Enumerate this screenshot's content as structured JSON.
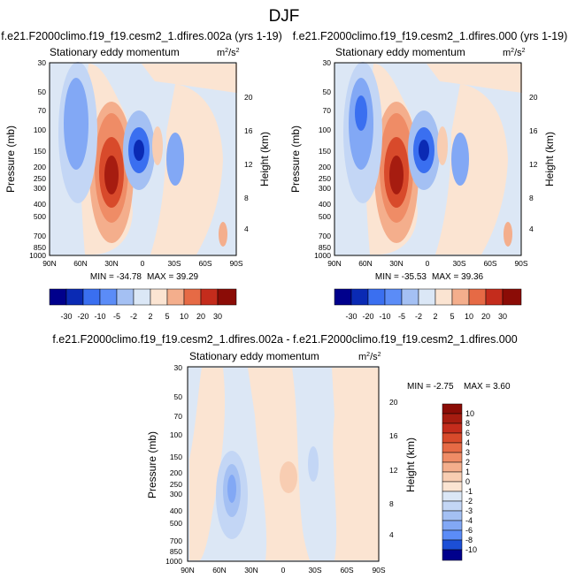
{
  "page_title": "DJF",
  "colors": {
    "neg": [
      "#00008c",
      "#0a2ab4",
      "#1c4fd6",
      "#3a6ff0",
      "#5b8cf7",
      "#82a8f5",
      "#a4c0f3",
      "#c3d6f5",
      "#dbe7f6"
    ],
    "pos": [
      "#fbe4d2",
      "#f8cdb2",
      "#f4ae8c",
      "#ef8c66",
      "#e66a45",
      "#d84a2b",
      "#c42c1c",
      "#a61c10",
      "#8b0c06"
    ],
    "bg_neutral": "#dce7f5"
  },
  "chart_data": [
    {
      "id": "top-left",
      "type": "contour",
      "header": "f.e21.F2000climo.f19_f19.cesm2_1.dfires.002a (yrs 1-19)",
      "title": "Stationary eddy momentum",
      "units_base": "m",
      "units_sup1": "2",
      "units_mid": "/s",
      "units_sup2": "2",
      "xlabel": "",
      "ylabel": "Pressure (mb)",
      "ylabel_right": "Height (km)",
      "x_ticks": [
        "90N",
        "60N",
        "30N",
        "0",
        "30S",
        "60S",
        "90S"
      ],
      "y_ticks": [
        "30",
        "50",
        "70",
        "100",
        "150",
        "200",
        "250",
        "300",
        "400",
        "500",
        "700",
        "850",
        "1000"
      ],
      "y_ticks_right": [
        "4",
        "8",
        "12",
        "16",
        "20"
      ],
      "min_label": "MIN = -34.78",
      "max_label": "MAX = 39.29",
      "colorbar_labels": [
        "-30",
        "-20",
        "-10",
        "-5",
        "-2",
        "2",
        "5",
        "10",
        "20",
        "30"
      ]
    },
    {
      "id": "top-right",
      "type": "contour",
      "header": "f.e21.F2000climo.f19_f19.cesm2_1.dfires.000 (yrs 1-19)",
      "title": "Stationary eddy momentum",
      "units_base": "m",
      "units_sup1": "2",
      "units_mid": "/s",
      "units_sup2": "2",
      "xlabel": "",
      "ylabel": "Pressure (mb)",
      "ylabel_right": "Height (km)",
      "x_ticks": [
        "90N",
        "60N",
        "30N",
        "0",
        "30S",
        "60S",
        "90S"
      ],
      "y_ticks": [
        "30",
        "50",
        "70",
        "100",
        "150",
        "200",
        "250",
        "300",
        "400",
        "500",
        "700",
        "850",
        "1000"
      ],
      "y_ticks_right": [
        "4",
        "8",
        "12",
        "16",
        "20"
      ],
      "min_label": "MIN = -35.53",
      "max_label": "MAX = 39.36",
      "colorbar_labels": [
        "-30",
        "-20",
        "-10",
        "-5",
        "-2",
        "2",
        "5",
        "10",
        "20",
        "30"
      ]
    },
    {
      "id": "bottom-diff",
      "type": "contour",
      "header": "f.e21.F2000climo.f19_f19.cesm2_1.dfires.002a - f.e21.F2000climo.f19_f19.cesm2_1.dfires.000",
      "title": "Stationary eddy momentum",
      "units_base": "m",
      "units_sup1": "2",
      "units_mid": "/s",
      "units_sup2": "2",
      "xlabel": "",
      "ylabel": "Pressure (mb)",
      "ylabel_right": "Height (km)",
      "x_ticks": [
        "90N",
        "60N",
        "30N",
        "0",
        "30S",
        "60S",
        "90S"
      ],
      "y_ticks": [
        "30",
        "50",
        "70",
        "100",
        "150",
        "200",
        "250",
        "300",
        "400",
        "500",
        "700",
        "850",
        "1000"
      ],
      "y_ticks_right": [
        "4",
        "8",
        "12",
        "16",
        "20"
      ],
      "min_label": "MIN = -2.75",
      "max_label": "MAX =  3.60",
      "colorbar_labels": [
        "10",
        "8",
        "6",
        "4",
        "3",
        "2",
        "1",
        "0",
        "-1",
        "-2",
        "-3",
        "-4",
        "-6",
        "-8",
        "-10"
      ]
    }
  ]
}
